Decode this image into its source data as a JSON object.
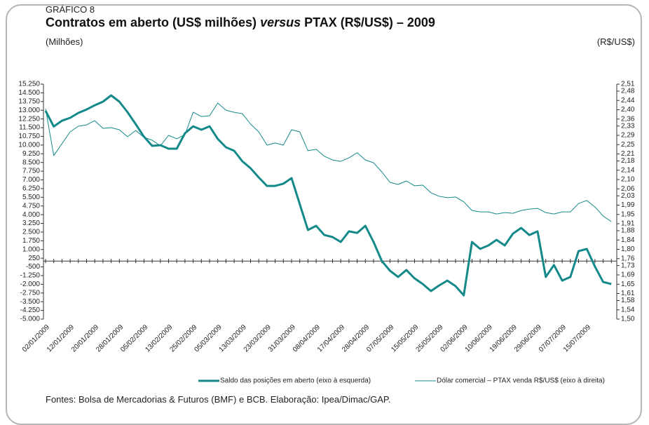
{
  "kicker": "GRÁFICO 8",
  "chart_data": {
    "type": "line",
    "title": [
      "Contratos em aberto (US$ milhões)",
      "versus",
      "PTAX (R$/US$) – 2009"
    ],
    "ylabel": "(Milhões)",
    "y2label": "(R$/US$)",
    "categories": [
      "02/01/2009",
      null,
      null,
      "12/01/2009",
      null,
      null,
      "20/01/2009",
      null,
      null,
      "28/01/2009",
      null,
      null,
      "05/02/2009",
      null,
      null,
      "13/02/2009",
      null,
      null,
      "25/02/2009",
      null,
      null,
      "05/03/2009",
      null,
      null,
      "13/03/2009",
      null,
      null,
      "23/03/2009",
      null,
      null,
      "31/03/2009",
      null,
      null,
      "08/04/2009",
      null,
      null,
      "17/04/2009",
      null,
      null,
      "28/04/2009",
      null,
      null,
      "07/05/2009",
      null,
      null,
      "15/05/2009",
      null,
      null,
      "25/05/2009",
      null,
      null,
      "02/06/2009",
      null,
      null,
      "10/06/2009",
      null,
      null,
      "19/06/2009",
      null,
      null,
      "29/06/2009",
      null,
      null,
      "07/07/2009",
      null,
      null,
      "15/07/2009",
      null,
      null,
      null
    ],
    "series": [
      {
        "name": "Saldo das posições em aberto (eixo à esquerda)",
        "color": "#14898a",
        "axis": "y",
        "values": [
          12950,
          11600,
          12100,
          12350,
          12770,
          13070,
          13430,
          13740,
          14280,
          13740,
          12830,
          11800,
          10720,
          9930,
          9990,
          9690,
          9690,
          11020,
          11620,
          11320,
          11620,
          10530,
          9810,
          9510,
          8600,
          8000,
          7210,
          6480,
          6480,
          6670,
          7150,
          4910,
          2680,
          3040,
          2250,
          2070,
          1650,
          2560,
          2430,
          3040,
          1650,
          20,
          -830,
          -1370,
          -770,
          -1490,
          -1980,
          -2580,
          -2100,
          -1680,
          -2160,
          -2950,
          1650,
          1050,
          1350,
          1830,
          1350,
          2370,
          2860,
          2250,
          2560,
          -1370,
          -340,
          -1680,
          -1370,
          860,
          1050,
          -470,
          -1800,
          -1980
        ]
      },
      {
        "name": "Dólar comercial – PTAX venda R$/US$ (eixo à direita)",
        "color": "#14898a",
        "axis": "y2",
        "values": [
          2.404,
          2.203,
          2.254,
          2.305,
          2.329,
          2.335,
          2.353,
          2.32,
          2.323,
          2.314,
          2.284,
          2.311,
          2.281,
          2.269,
          2.245,
          2.29,
          2.275,
          2.293,
          2.389,
          2.371,
          2.374,
          2.429,
          2.398,
          2.389,
          2.383,
          2.338,
          2.305,
          2.248,
          2.257,
          2.248,
          2.314,
          2.305,
          2.224,
          2.23,
          2.2,
          2.184,
          2.178,
          2.193,
          2.215,
          2.184,
          2.172,
          2.133,
          2.088,
          2.079,
          2.094,
          2.073,
          2.076,
          2.043,
          2.028,
          2.022,
          2.025,
          2.004,
          1.967,
          1.961,
          1.961,
          1.952,
          1.958,
          1.955,
          1.967,
          1.973,
          1.976,
          1.958,
          1.952,
          1.961,
          1.961,
          1.997,
          2.01,
          1.982,
          1.943,
          1.919
        ]
      }
    ],
    "ylim": [
      -5000,
      15250
    ],
    "yticks": [
      {
        "value": 15250,
        "label": "15.250"
      },
      {
        "value": 14500,
        "label": "14.500"
      },
      {
        "value": 13750,
        "label": "13.750"
      },
      {
        "value": 13000,
        "label": "13.000"
      },
      {
        "value": 12250,
        "label": "12.250"
      },
      {
        "value": 11500,
        "label": "11.500"
      },
      {
        "value": 10750,
        "label": "10.750"
      },
      {
        "value": 10000,
        "label": "10.000"
      },
      {
        "value": 9250,
        "label": "9.250"
      },
      {
        "value": 8500,
        "label": "8.500"
      },
      {
        "value": 7750,
        "label": "7.750"
      },
      {
        "value": 7000,
        "label": "7.000"
      },
      {
        "value": 6250,
        "label": "6.250"
      },
      {
        "value": 5500,
        "label": "5.500"
      },
      {
        "value": 4750,
        "label": "4.750"
      },
      {
        "value": 4000,
        "label": "4.000"
      },
      {
        "value": 3250,
        "label": "3.250"
      },
      {
        "value": 2500,
        "label": "2.500"
      },
      {
        "value": 1750,
        "label": "1.750"
      },
      {
        "value": 1000,
        "label": "1.000"
      },
      250,
      -500,
      {
        "value": -1250,
        "label": "-1.250"
      },
      {
        "value": -2000,
        "label": "-2.000"
      },
      {
        "value": -2750,
        "label": "-2.750"
      },
      {
        "value": -3500,
        "label": "-3.500"
      },
      {
        "value": -4250,
        "label": "-4.250"
      },
      {
        "value": -5000,
        "label": "-5.000"
      }
    ],
    "y2lim": [
      1.5,
      2.51
    ],
    "y2ticks": [
      {
        "value": 2.51,
        "label": "2,51"
      },
      {
        "value": 2.48,
        "label": "2,48"
      },
      {
        "value": 2.44,
        "label": "2,44"
      },
      {
        "value": 2.4,
        "label": "2,40"
      },
      {
        "value": 2.36,
        "label": "2,36"
      },
      {
        "value": 2.33,
        "label": "2,33"
      },
      {
        "value": 2.29,
        "label": "2,29"
      },
      {
        "value": 2.25,
        "label": "2,25"
      },
      {
        "value": 2.21,
        "label": "2,21"
      },
      {
        "value": 2.18,
        "label": "2,18"
      },
      {
        "value": 2.14,
        "label": "2,14"
      },
      {
        "value": 2.1,
        "label": "2,10"
      },
      {
        "value": 2.06,
        "label": "2,06"
      },
      {
        "value": 2.03,
        "label": "2,03"
      },
      {
        "value": 1.99,
        "label": "1,99"
      },
      {
        "value": 1.95,
        "label": "1,95"
      },
      {
        "value": 1.91,
        "label": "1,91"
      },
      {
        "value": 1.88,
        "label": "1,88"
      },
      {
        "value": 1.84,
        "label": "1,84"
      },
      {
        "value": 1.8,
        "label": "1,80"
      },
      {
        "value": 1.76,
        "label": "1,76"
      },
      {
        "value": 1.73,
        "label": "1,73"
      },
      {
        "value": 1.69,
        "label": "1,69"
      },
      {
        "value": 1.65,
        "label": "1,65"
      },
      {
        "value": 1.61,
        "label": "1,61"
      },
      {
        "value": 1.58,
        "label": "1,58"
      },
      {
        "value": 1.54,
        "label": "1,54"
      },
      {
        "value": 1.5,
        "label": "1,50"
      }
    ],
    "grid": false,
    "legend": "bottom"
  },
  "source": "Fontes: Bolsa de Mercadorias & Futuros (BMF) e BCB. Elaboração: Ipea/Dimac/GAP."
}
